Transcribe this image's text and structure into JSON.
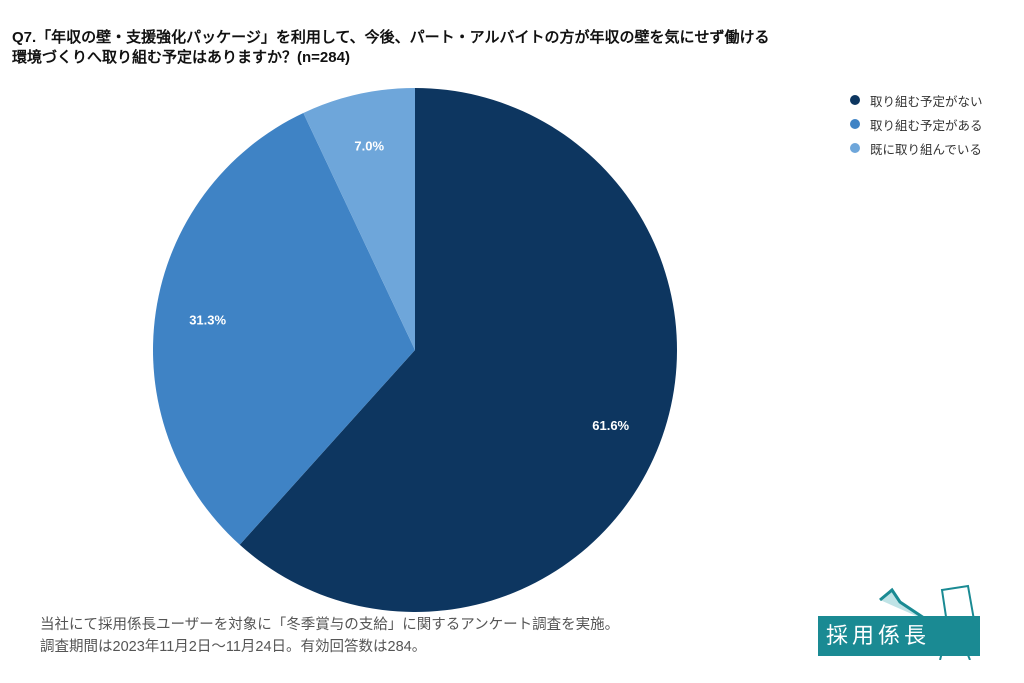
{
  "chart_data": {
    "type": "pie",
    "title": "Q7.「年収の壁・支援強化パッケージ」を利用して、今後、パート・アルバイトの方が年収の壁を気にせず働ける環境づくりへ取り組む予定はありますか？(n=284)",
    "start": "12 o'clock, clockwise",
    "slices": [
      {
        "name": "取り組む予定がない",
        "value": 61.6,
        "label": "61.6%",
        "color": "#0d3660"
      },
      {
        "name": "取り組む予定がある",
        "value": 31.3,
        "label": "31.3%",
        "color": "#3f83c5"
      },
      {
        "name": "既に取り組んでいる",
        "value": 7.0,
        "label": "7.0%",
        "color": "#6ea6da"
      }
    ],
    "legend_position": "top-right"
  },
  "footnote": {
    "line1": "当社にて採用係長ユーザーを対象に「冬季賞与の支給」に関するアンケート調査を実施。",
    "line2": "調査期間は2023年11月2日〜11月24日。有効回答数は284。"
  },
  "logo": {
    "text": "採用係長",
    "color": "#1a8a93"
  }
}
